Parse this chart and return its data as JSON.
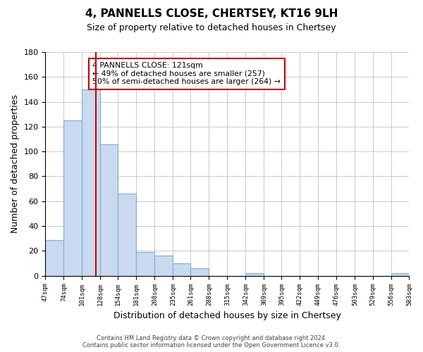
{
  "title": "4, PANNELLS CLOSE, CHERTSEY, KT16 9LH",
  "subtitle": "Size of property relative to detached houses in Chertsey",
  "xlabel": "Distribution of detached houses by size in Chertsey",
  "ylabel": "Number of detached properties",
  "bar_edges": [
    47,
    74,
    101,
    128,
    154,
    181,
    208,
    235,
    261,
    288,
    315,
    342,
    369,
    395,
    422,
    449,
    476,
    503,
    529,
    556,
    583
  ],
  "bar_heights": [
    29,
    125,
    150,
    106,
    66,
    19,
    16,
    10,
    6,
    0,
    0,
    2,
    0,
    0,
    0,
    0,
    0,
    0,
    0,
    2
  ],
  "bar_color": "#c9d9f0",
  "bar_edge_color": "#7bafd4",
  "vline_x": 121,
  "vline_color": "#cc0000",
  "ylim": [
    0,
    180
  ],
  "yticks": [
    0,
    20,
    40,
    60,
    80,
    100,
    120,
    140,
    160,
    180
  ],
  "annotation_title": "4 PANNELLS CLOSE: 121sqm",
  "annotation_line1": "← 49% of detached houses are smaller (257)",
  "annotation_line2": "50% of semi-detached houses are larger (264) →",
  "tick_labels": [
    "47sqm",
    "74sqm",
    "101sqm",
    "128sqm",
    "154sqm",
    "181sqm",
    "208sqm",
    "235sqm",
    "261sqm",
    "288sqm",
    "315sqm",
    "342sqm",
    "369sqm",
    "395sqm",
    "422sqm",
    "449sqm",
    "476sqm",
    "503sqm",
    "529sqm",
    "556sqm",
    "583sqm"
  ],
  "footer1": "Contains HM Land Registry data © Crown copyright and database right 2024.",
  "footer2": "Contains public sector information licensed under the Open Government Licence v3.0.",
  "bg_color": "#ffffff",
  "grid_color": "#c0c0c0"
}
